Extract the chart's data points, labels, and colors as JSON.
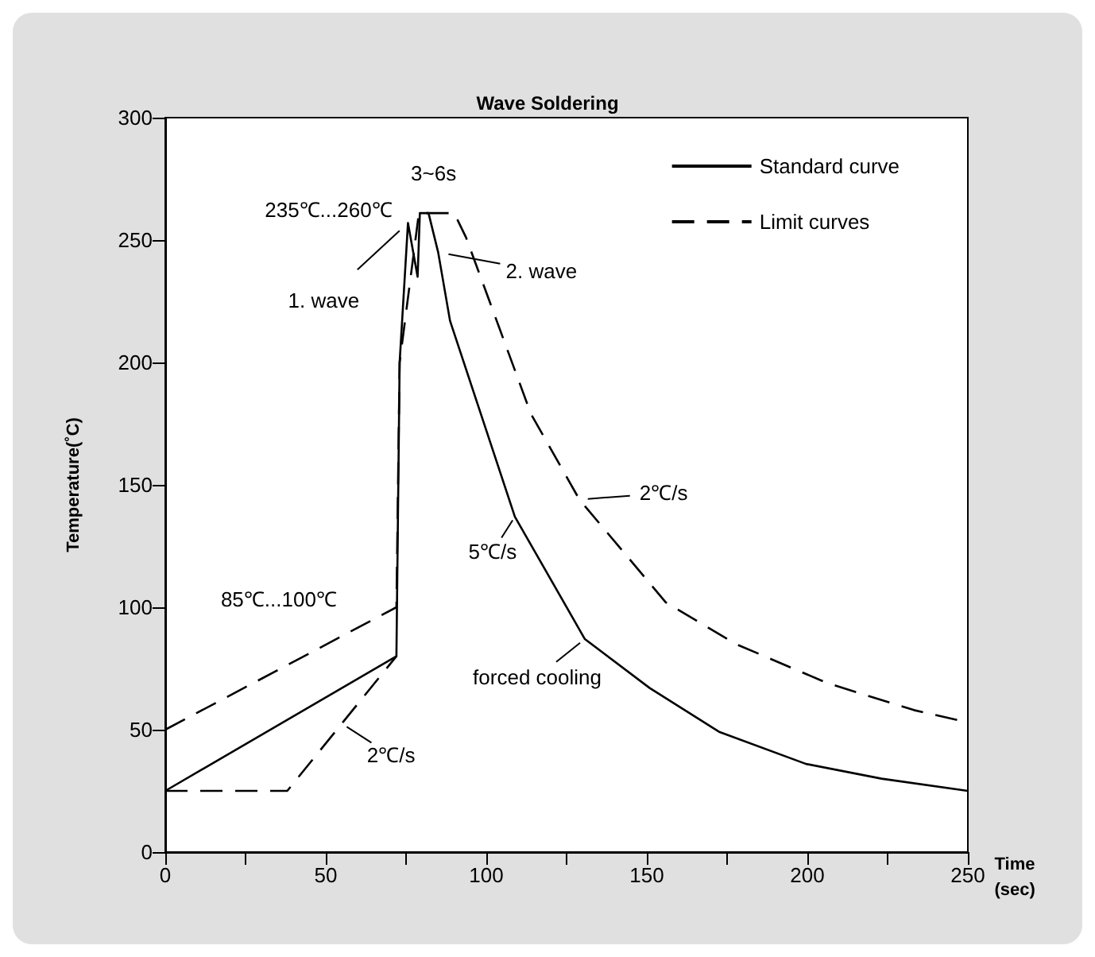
{
  "chart_data": {
    "type": "line",
    "title": "Wave Soldering",
    "xlabel": "Time\n(sec)",
    "ylabel": "Temperature(˚C)",
    "xlim": [
      0,
      250
    ],
    "ylim": [
      0,
      300
    ],
    "xticks": [
      0,
      {
        "value": 25,
        "label": null
      },
      50,
      {
        "value": 75,
        "label": null
      },
      100,
      {
        "value": 125,
        "label": null
      },
      150,
      {
        "value": 175,
        "label": null
      },
      200,
      {
        "value": 225,
        "label": null
      },
      250
    ],
    "yticks": [
      0,
      50,
      100,
      150,
      200,
      250,
      300
    ],
    "grid": false,
    "legend": "top right",
    "marker": "none",
    "series": [
      {
        "name": "Standard curve",
        "color": "#000000",
        "line_style": "solid",
        "x": [
          0,
          72,
          73,
          75.6,
          78.6,
          79.3,
          82,
          85,
          88.7,
          108.9,
          130.7,
          150.9,
          172.7,
          199.6,
          223.1,
          250
        ],
        "values": [
          25,
          80,
          200,
          257,
          235,
          261,
          261,
          245,
          217,
          137,
          87,
          67,
          49,
          36,
          30,
          25
        ]
      },
      {
        "name": "Limit curves",
        "color": "#000000",
        "line_style": "dashed",
        "x": [
          0,
          72,
          73,
          79,
          90,
          93.7,
          103.8,
          113.9,
          129,
          155.9,
          177.7,
          206.3,
          233.2,
          250
        ],
        "values": [
          50,
          100,
          200,
          261,
          261,
          251,
          215,
          179,
          144,
          102,
          85,
          69,
          58,
          53
        ]
      },
      {
        "color": "#000000",
        "line_style": "dashed",
        "x": [
          0,
          38,
          72
        ],
        "values": [
          25,
          25,
          80
        ]
      }
    ],
    "annotations": [
      {
        "text": "235℃...260℃",
        "x": 75.6,
        "y": 257
      },
      {
        "text": "1. wave",
        "x": 75.6,
        "y": 257
      },
      {
        "text": "2. wave",
        "x": 85,
        "y": 245
      },
      {
        "text": "3~6s",
        "x": 90,
        "y": 261
      },
      {
        "text": "85℃...100℃",
        "x": 72,
        "y": 100
      },
      {
        "text": "2℃/s",
        "x": 55,
        "y": 52.5
      },
      {
        "text": "5℃/s",
        "x": 108.9,
        "y": 137
      },
      {
        "text": "2℃/s",
        "x": 129,
        "y": 144
      },
      {
        "text": "forced cooling",
        "x": 130.7,
        "y": 87
      }
    ]
  }
}
